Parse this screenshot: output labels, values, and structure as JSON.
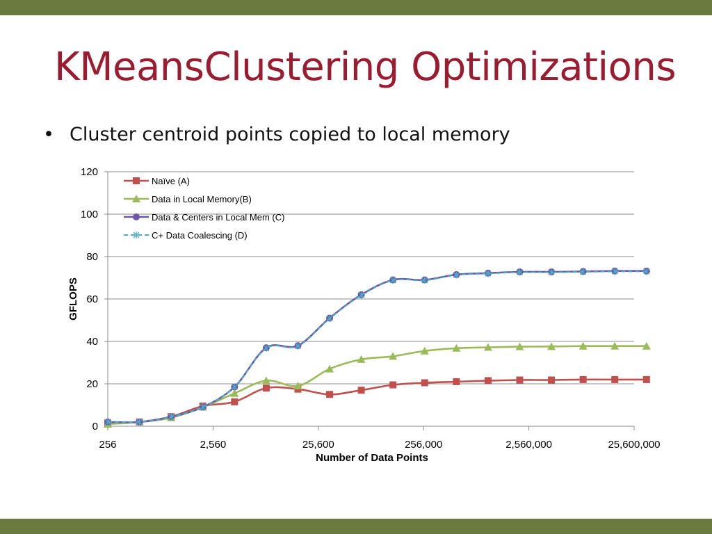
{
  "slide": {
    "title": "KMeansClustering Optimizations",
    "bullet": "Cluster centroid points copied to local memory",
    "colors": {
      "title": "#9b1b30",
      "bars": "#6b7a3f"
    }
  },
  "chart_data": {
    "type": "line",
    "xlabel": "Number of Data Points",
    "ylabel": "GFLOPS",
    "ylim": [
      0,
      120
    ],
    "yticks": [
      0,
      20,
      40,
      60,
      80,
      100,
      120
    ],
    "xticks": [
      "256",
      "2,560",
      "25,600",
      "256,000",
      "2,560,000",
      "25,600,000"
    ],
    "xscale": "log",
    "x": [
      256,
      512,
      1024,
      2048,
      4096,
      8192,
      16384,
      32768,
      65536,
      131072,
      262144,
      524288,
      1048576,
      2097152,
      4194304,
      8388608,
      16777216,
      33554432
    ],
    "grid": "horizontal",
    "legend": "top-left",
    "series": [
      {
        "name": "Naïve (A)",
        "color": "#c0504d",
        "marker": "square",
        "values": [
          1.5,
          2.0,
          4.5,
          9.5,
          11.5,
          18,
          17.5,
          15,
          17,
          19.5,
          20.5,
          21,
          21.5,
          21.8,
          21.8,
          22,
          22,
          22
        ]
      },
      {
        "name": "Data in Local Memory(B)",
        "color": "#9bbb59",
        "marker": "triangle",
        "values": [
          1.0,
          2.0,
          4.0,
          9.0,
          15.5,
          21.5,
          19,
          27,
          31.5,
          33,
          35.5,
          36.8,
          37.2,
          37.5,
          37.6,
          37.8,
          37.8,
          37.8
        ]
      },
      {
        "name": "Data & Centers in Local Mem (C)",
        "color": "#6f55a6",
        "marker": "circle",
        "values": [
          2.0,
          2.0,
          4.5,
          9.0,
          18.5,
          37,
          38,
          51,
          62,
          69,
          69,
          71.5,
          72.2,
          72.8,
          72.8,
          73,
          73.2,
          73.2
        ]
      },
      {
        "name": "C+ Data Coalescing (D)",
        "color": "#4bacc6",
        "marker": "star",
        "dashed": true,
        "values": [
          2.0,
          2.0,
          4.5,
          9.0,
          18.5,
          36.8,
          37.8,
          50.8,
          61.8,
          68.8,
          68.8,
          71.3,
          72.0,
          72.6,
          72.6,
          72.8,
          73.0,
          73.0
        ]
      }
    ]
  }
}
